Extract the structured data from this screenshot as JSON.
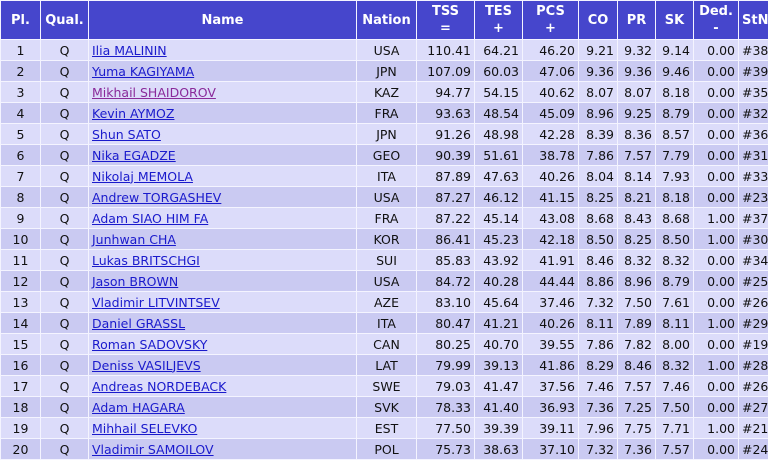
{
  "table": {
    "columns": [
      [
        "Pl."
      ],
      [
        "Qual."
      ],
      [
        "Name"
      ],
      [
        "Nation"
      ],
      [
        "TSS",
        "="
      ],
      [
        "TES",
        "+"
      ],
      [
        "PCS",
        "+"
      ],
      [
        "CO"
      ],
      [
        "PR"
      ],
      [
        "SK"
      ],
      [
        "Ded.",
        "-"
      ],
      [
        "StN."
      ]
    ],
    "rows": [
      [
        "1",
        "Q",
        "Ilia MALININ",
        "USA",
        "110.41",
        "64.21",
        "46.20",
        "9.21",
        "9.32",
        "9.14",
        "0.00",
        "#38"
      ],
      [
        "2",
        "Q",
        "Yuma KAGIYAMA",
        "JPN",
        "107.09",
        "60.03",
        "47.06",
        "9.36",
        "9.36",
        "9.46",
        "0.00",
        "#39"
      ],
      [
        "3",
        "Q",
        "Mikhail SHAIDOROV",
        "KAZ",
        "94.77",
        "54.15",
        "40.62",
        "8.07",
        "8.07",
        "8.18",
        "0.00",
        "#35"
      ],
      [
        "4",
        "Q",
        "Kevin AYMOZ",
        "FRA",
        "93.63",
        "48.54",
        "45.09",
        "8.96",
        "9.25",
        "8.79",
        "0.00",
        "#32"
      ],
      [
        "5",
        "Q",
        "Shun SATO",
        "JPN",
        "91.26",
        "48.98",
        "42.28",
        "8.39",
        "8.36",
        "8.57",
        "0.00",
        "#36"
      ],
      [
        "6",
        "Q",
        "Nika EGADZE",
        "GEO",
        "90.39",
        "51.61",
        "38.78",
        "7.86",
        "7.57",
        "7.79",
        "0.00",
        "#31"
      ],
      [
        "7",
        "Q",
        "Nikolaj MEMOLA",
        "ITA",
        "87.89",
        "47.63",
        "40.26",
        "8.04",
        "8.14",
        "7.93",
        "0.00",
        "#33"
      ],
      [
        "8",
        "Q",
        "Andrew TORGASHEV",
        "USA",
        "87.27",
        "46.12",
        "41.15",
        "8.25",
        "8.21",
        "8.18",
        "0.00",
        "#23"
      ],
      [
        "9",
        "Q",
        "Adam SIAO HIM FA",
        "FRA",
        "87.22",
        "45.14",
        "43.08",
        "8.68",
        "8.43",
        "8.68",
        "1.00",
        "#37"
      ],
      [
        "10",
        "Q",
        "Junhwan CHA",
        "KOR",
        "86.41",
        "45.23",
        "42.18",
        "8.50",
        "8.25",
        "8.50",
        "1.00",
        "#30"
      ],
      [
        "11",
        "Q",
        "Lukas BRITSCHGI",
        "SUI",
        "85.83",
        "43.92",
        "41.91",
        "8.46",
        "8.32",
        "8.32",
        "0.00",
        "#34"
      ],
      [
        "12",
        "Q",
        "Jason BROWN",
        "USA",
        "84.72",
        "40.28",
        "44.44",
        "8.86",
        "8.96",
        "8.79",
        "0.00",
        "#25"
      ],
      [
        "13",
        "Q",
        "Vladimir LITVINTSEV",
        "AZE",
        "83.10",
        "45.64",
        "37.46",
        "7.32",
        "7.50",
        "7.61",
        "0.00",
        "#26"
      ],
      [
        "14",
        "Q",
        "Daniel GRASSL",
        "ITA",
        "80.47",
        "41.21",
        "40.26",
        "8.11",
        "7.89",
        "8.11",
        "1.00",
        "#29"
      ],
      [
        "15",
        "Q",
        "Roman SADOVSKY",
        "CAN",
        "80.25",
        "40.70",
        "39.55",
        "7.86",
        "7.82",
        "8.00",
        "0.00",
        "#19"
      ],
      [
        "16",
        "Q",
        "Deniss VASILJEVS",
        "LAT",
        "79.99",
        "39.13",
        "41.86",
        "8.29",
        "8.46",
        "8.32",
        "1.00",
        "#28"
      ],
      [
        "17",
        "Q",
        "Andreas NORDEBACK",
        "SWE",
        "79.03",
        "41.47",
        "37.56",
        "7.46",
        "7.57",
        "7.46",
        "0.00",
        "#26"
      ],
      [
        "18",
        "Q",
        "Adam HAGARA",
        "SVK",
        "78.33",
        "41.40",
        "36.93",
        "7.36",
        "7.25",
        "7.50",
        "0.00",
        "#27"
      ],
      [
        "19",
        "Q",
        "Mihhail SELEVKO",
        "EST",
        "77.50",
        "39.39",
        "39.11",
        "7.96",
        "7.75",
        "7.71",
        "1.00",
        "#21"
      ],
      [
        "20",
        "Q",
        "Vladimir SAMOILOV",
        "POL",
        "75.73",
        "38.63",
        "37.10",
        "7.32",
        "7.36",
        "7.57",
        "0.00",
        "#24"
      ]
    ]
  }
}
